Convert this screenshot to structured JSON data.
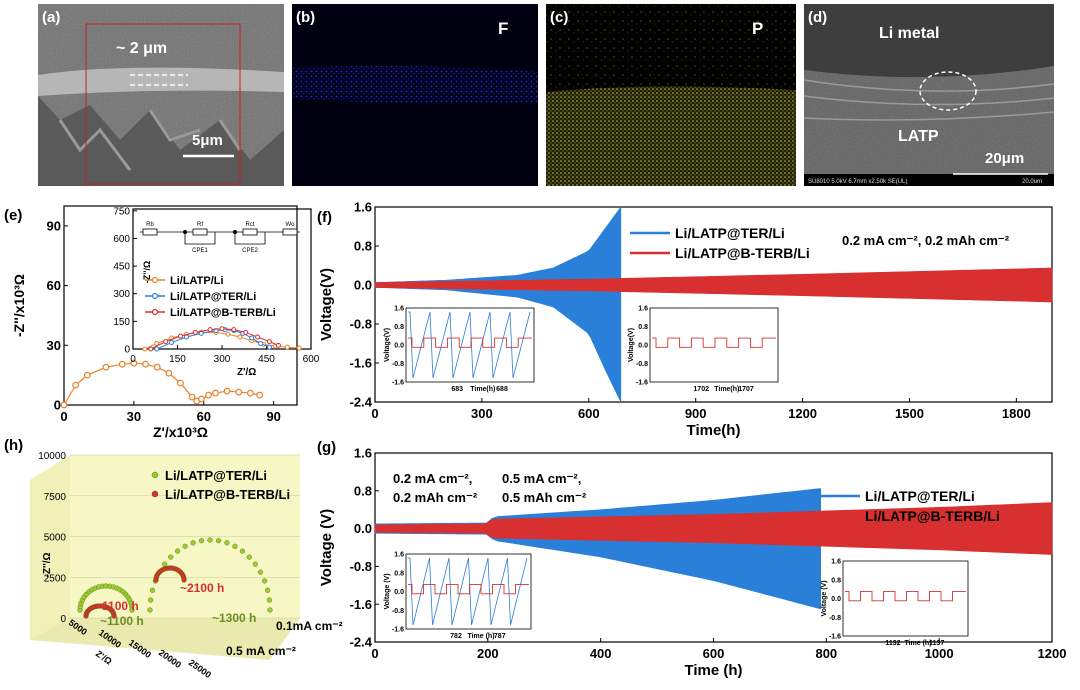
{
  "panel_labels": {
    "a": "(a)",
    "b": "(b)",
    "c": "(c)",
    "d": "(d)",
    "e": "(e)",
    "f": "(f)",
    "g": "(g)",
    "h": "(h)"
  },
  "micrographs": {
    "a": {
      "thickness": "~ 2 μm",
      "scale": "5μm"
    },
    "b": {
      "element": "F",
      "color": "#2a2ad8"
    },
    "c": {
      "element": "P",
      "color": "#c8c820"
    },
    "d": {
      "top": "Li metal",
      "bottom": "LATP",
      "scale": "20μm",
      "footer": "SU8010 5.0kV 6.7mm x2.50k SE(UL)",
      "footer_scale": "20.0um"
    }
  },
  "chart_data": [
    {
      "panel": "e",
      "type": "scatter",
      "xlabel": "Z'/x10³Ω",
      "ylabel": "-Z''/x10³Ω",
      "xlim": [
        0,
        100
      ],
      "ylim": [
        0,
        100
      ],
      "xticks": [
        0,
        30,
        60,
        90
      ],
      "yticks": [
        0,
        30,
        60,
        90
      ],
      "series": [
        {
          "name": "Li/LATP/Li",
          "color": "#e8822a",
          "x": [
            0,
            5,
            10,
            18,
            25,
            30,
            35,
            40,
            45,
            50,
            55,
            57,
            59,
            62,
            65,
            70,
            75,
            80,
            84
          ],
          "y": [
            0,
            10,
            15,
            19,
            20.5,
            21,
            20.5,
            19,
            16,
            11,
            4,
            2,
            3,
            5,
            6,
            7,
            6.5,
            6,
            5
          ]
        }
      ],
      "inset": {
        "xlabel": "Z'/Ω",
        "ylabel": "-Z''/Ω",
        "xlim": [
          0,
          600
        ],
        "ylim": [
          0,
          760
        ],
        "xticks": [
          0,
          150,
          300,
          450,
          600
        ],
        "yticks": [
          0,
          150,
          300,
          450,
          600,
          750
        ],
        "circuit": [
          "Rb",
          "Rf",
          "Rct",
          "Wo",
          "CPE1",
          "CPE2"
        ],
        "series": [
          {
            "name": "Li/LATP/Li",
            "color": "#e8822a",
            "x": [
              40,
              80,
              130,
              180,
              230,
              280,
              320,
              360,
              400,
              440,
              480,
              520,
              560
            ],
            "y": [
              0,
              30,
              60,
              80,
              90,
              90,
              80,
              65,
              45,
              25,
              15,
              10,
              5
            ]
          },
          {
            "name": "Li/LATP@TER/Li",
            "color": "#2a7fd8",
            "x": [
              80,
              130,
              180,
              230,
              280,
              310,
              340,
              370,
              400,
              430,
              460
            ],
            "y": [
              0,
              35,
              65,
              85,
              100,
              105,
              100,
              85,
              60,
              30,
              10
            ]
          },
          {
            "name": "Li/LATP@B-TERB/Li",
            "color": "#d83030",
            "x": [
              60,
              110,
              160,
              210,
              260,
              300,
              340,
              380,
              420,
              460,
              490
            ],
            "y": [
              0,
              40,
              70,
              90,
              105,
              110,
              105,
              90,
              65,
              40,
              20
            ]
          }
        ]
      }
    },
    {
      "panel": "f",
      "type": "line",
      "xlabel": "Time(h)",
      "ylabel": "Voltage(V)",
      "xlim": [
        0,
        1900
      ],
      "ylim": [
        -2.4,
        1.6
      ],
      "xticks": [
        0,
        300,
        600,
        900,
        1200,
        1500,
        1800
      ],
      "yticks": [
        -2.4,
        -1.6,
        -0.8,
        0.0,
        0.8,
        1.6
      ],
      "annotation": "0.2 mA cm⁻², 0.2 mAh cm⁻²",
      "series": [
        {
          "name": "Li/LATP@TER/Li",
          "color": "#2a7fd8",
          "t": [
            0,
            200,
            400,
            500,
            600,
            650,
            690
          ],
          "amp": [
            0.05,
            0.1,
            0.2,
            0.35,
            0.7,
            1.2,
            1.6
          ],
          "amp_neg": [
            0.05,
            0.1,
            0.25,
            0.45,
            1.0,
            1.8,
            2.4
          ]
        },
        {
          "name": "Li/LATP@B-TERB/Li",
          "color": "#d83030",
          "t": [
            0,
            600,
            1200,
            1800,
            1900
          ],
          "amp": [
            0.05,
            0.12,
            0.22,
            0.33,
            0.35
          ]
        }
      ],
      "insets": [
        {
          "xlabel": "Time(h)",
          "ylabel": "Voltage(V)",
          "xticks": [
            683,
            688
          ],
          "yticks": [
            -1.6,
            -0.8,
            0.0,
            0.8,
            1.6
          ]
        },
        {
          "xlabel": "Time(h)",
          "ylabel": "Voltage(V)",
          "xticks": [
            1702,
            1707
          ],
          "yticks": [
            -1.6,
            -0.8,
            0.0,
            0.8,
            1.6
          ]
        }
      ]
    },
    {
      "panel": "g",
      "type": "line",
      "xlabel": "Time (h)",
      "ylabel": "Voltage (V)",
      "xlim": [
        0,
        1200
      ],
      "ylim": [
        -2.4,
        1.6
      ],
      "xticks": [
        0,
        200,
        400,
        600,
        800,
        1000,
        1200
      ],
      "yticks": [
        -2.4,
        -1.6,
        -0.8,
        0.0,
        0.8,
        1.6
      ],
      "annotations": [
        "0.2 mA cm⁻²,",
        "0.2 mAh cm⁻²",
        "0.5 mA cm⁻²,",
        "0.5 mAh cm⁻²"
      ],
      "series": [
        {
          "name": "Li/LATP@TER/Li",
          "color": "#2a7fd8",
          "t": [
            0,
            200,
            210,
            400,
            600,
            790
          ],
          "amp": [
            0.1,
            0.12,
            0.25,
            0.4,
            0.6,
            0.85
          ],
          "amp_neg": [
            0.1,
            0.12,
            0.25,
            0.6,
            1.1,
            1.7
          ]
        },
        {
          "name": "Li/LATP@B-TERB/Li",
          "color": "#d83030",
          "t": [
            0,
            200,
            210,
            600,
            1000,
            1200
          ],
          "amp": [
            0.08,
            0.1,
            0.2,
            0.3,
            0.45,
            0.55
          ]
        }
      ],
      "insets": [
        {
          "xlabel": "Time (h)",
          "ylabel": "Voltage (V)",
          "xticks": [
            782,
            787
          ],
          "yticks": [
            -1.6,
            -0.8,
            0.0,
            0.8,
            1.6
          ]
        },
        {
          "xlabel": "Time (h)",
          "ylabel": "Voltage (V)",
          "xticks": [
            1132,
            1137
          ],
          "yticks": [
            -1.6,
            -0.8,
            0.0,
            0.8,
            1.6
          ]
        }
      ]
    },
    {
      "panel": "h",
      "type": "scatter",
      "zlabel": "-Z''/Ω",
      "xlabel": "Z'/Ω",
      "ylabel_axis": [
        "0.1mA cm⁻²",
        "0.5 mA cm⁻²"
      ],
      "zticks": [
        0,
        2500,
        5000,
        7500,
        10000
      ],
      "xticks": [
        5000,
        10000,
        15000,
        20000,
        25000
      ],
      "legend": [
        "Li/LATP@TER/Li",
        "Li/LATP@B-TERB/Li"
      ],
      "labels": [
        "~1100 h",
        "~1100 h",
        "~2100 h",
        "~1300 h"
      ]
    }
  ]
}
